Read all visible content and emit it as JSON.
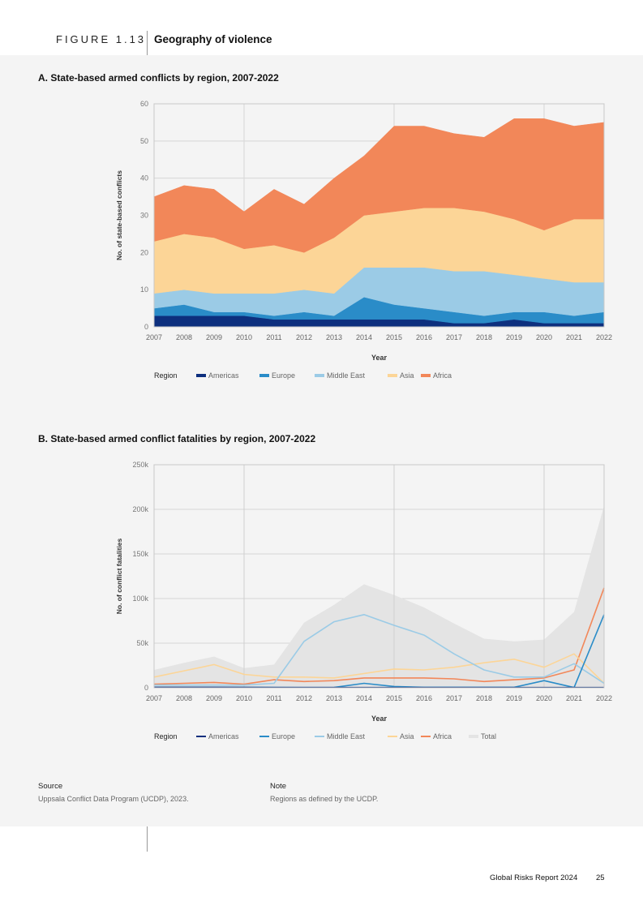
{
  "figure": {
    "label": "FIGURE 1.13",
    "title": "Geography of violence"
  },
  "colors": {
    "Americas": "#0d2f7e",
    "Europe": "#2a8cc8",
    "Middle East": "#9bcbe6",
    "Asia": "#fcd597",
    "Africa": "#f28759",
    "Total": "#e4e4e4"
  },
  "chart_data": [
    {
      "type": "area",
      "title": "A. State-based armed conflicts by region, 2007-2022",
      "xlabel": "Year",
      "ylabel": "No. of state-based conflicts",
      "ylim": [
        0,
        60
      ],
      "yticks": [
        "0",
        "10",
        "20",
        "30",
        "40",
        "50",
        "60"
      ],
      "grid": true,
      "stacked": true,
      "legend_title": "Region",
      "x": [
        "2007",
        "2008",
        "2009",
        "2010",
        "2011",
        "2012",
        "2013",
        "2014",
        "2015",
        "2016",
        "2017",
        "2018",
        "2019",
        "2020",
        "2021",
        "2022"
      ],
      "series": [
        {
          "name": "Americas",
          "values": [
            3,
            3,
            3,
            3,
            2,
            2,
            2,
            2,
            2,
            2,
            1,
            1,
            2,
            1,
            1,
            1
          ]
        },
        {
          "name": "Europe",
          "values": [
            2,
            3,
            1,
            1,
            1,
            2,
            1,
            6,
            4,
            3,
            3,
            2,
            2,
            3,
            2,
            3
          ]
        },
        {
          "name": "Middle East",
          "values": [
            4,
            4,
            5,
            5,
            6,
            6,
            6,
            8,
            10,
            11,
            11,
            12,
            10,
            9,
            9,
            8
          ]
        },
        {
          "name": "Asia",
          "values": [
            14,
            15,
            15,
            12,
            13,
            10,
            15,
            14,
            15,
            16,
            17,
            16,
            15,
            13,
            17,
            17
          ]
        },
        {
          "name": "Africa",
          "values": [
            12,
            13,
            13,
            10,
            15,
            13,
            16,
            16,
            23,
            22,
            20,
            20,
            27,
            30,
            25,
            26
          ]
        }
      ]
    },
    {
      "type": "line",
      "title": "B. State-based armed conflict fatalities by region, 2007-2022",
      "xlabel": "Year",
      "ylabel": "No. of conflict fatalities",
      "ylim": [
        0,
        250000
      ],
      "yticks": [
        "0",
        "50k",
        "100k",
        "150k",
        "200k",
        "250k"
      ],
      "grid": true,
      "legend_title": "Region",
      "x": [
        "2007",
        "2008",
        "2009",
        "2010",
        "2011",
        "2012",
        "2013",
        "2014",
        "2015",
        "2016",
        "2017",
        "2018",
        "2019",
        "2020",
        "2021",
        "2022"
      ],
      "series": [
        {
          "name": "Americas",
          "values": [
            500,
            500,
            500,
            400,
            300,
            300,
            300,
            300,
            300,
            300,
            300,
            300,
            300,
            300,
            300,
            300
          ]
        },
        {
          "name": "Europe",
          "values": [
            500,
            500,
            500,
            500,
            400,
            300,
            400,
            5000,
            1500,
            500,
            500,
            500,
            500,
            8000,
            300,
            82000
          ]
        },
        {
          "name": "Middle East",
          "values": [
            3000,
            3000,
            3000,
            3000,
            5000,
            52000,
            74000,
            82000,
            70000,
            59000,
            38000,
            20000,
            12000,
            12000,
            27000,
            5000
          ]
        },
        {
          "name": "Asia",
          "values": [
            12000,
            19000,
            26000,
            15000,
            12000,
            12000,
            11000,
            16000,
            21000,
            20000,
            23000,
            28000,
            32000,
            23000,
            38000,
            5000
          ]
        },
        {
          "name": "Africa",
          "values": [
            4000,
            5000,
            6000,
            4000,
            9000,
            7000,
            8000,
            11000,
            11000,
            11000,
            10000,
            7000,
            9000,
            11000,
            20000,
            112000
          ]
        }
      ],
      "area_series": {
        "name": "Total",
        "values": [
          20000,
          28000,
          35000,
          22000,
          26000,
          73000,
          93000,
          116000,
          104000,
          90000,
          72000,
          55000,
          52000,
          54000,
          85000,
          204000
        ]
      }
    }
  ],
  "footer": {
    "source_label": "Source",
    "source_text": "Uppsala Conflict Data Program (UCDP), 2023.",
    "note_label": "Note",
    "note_text": "Regions as defined by the UCDP.",
    "report": "Global Risks Report 2024",
    "page": "25"
  }
}
